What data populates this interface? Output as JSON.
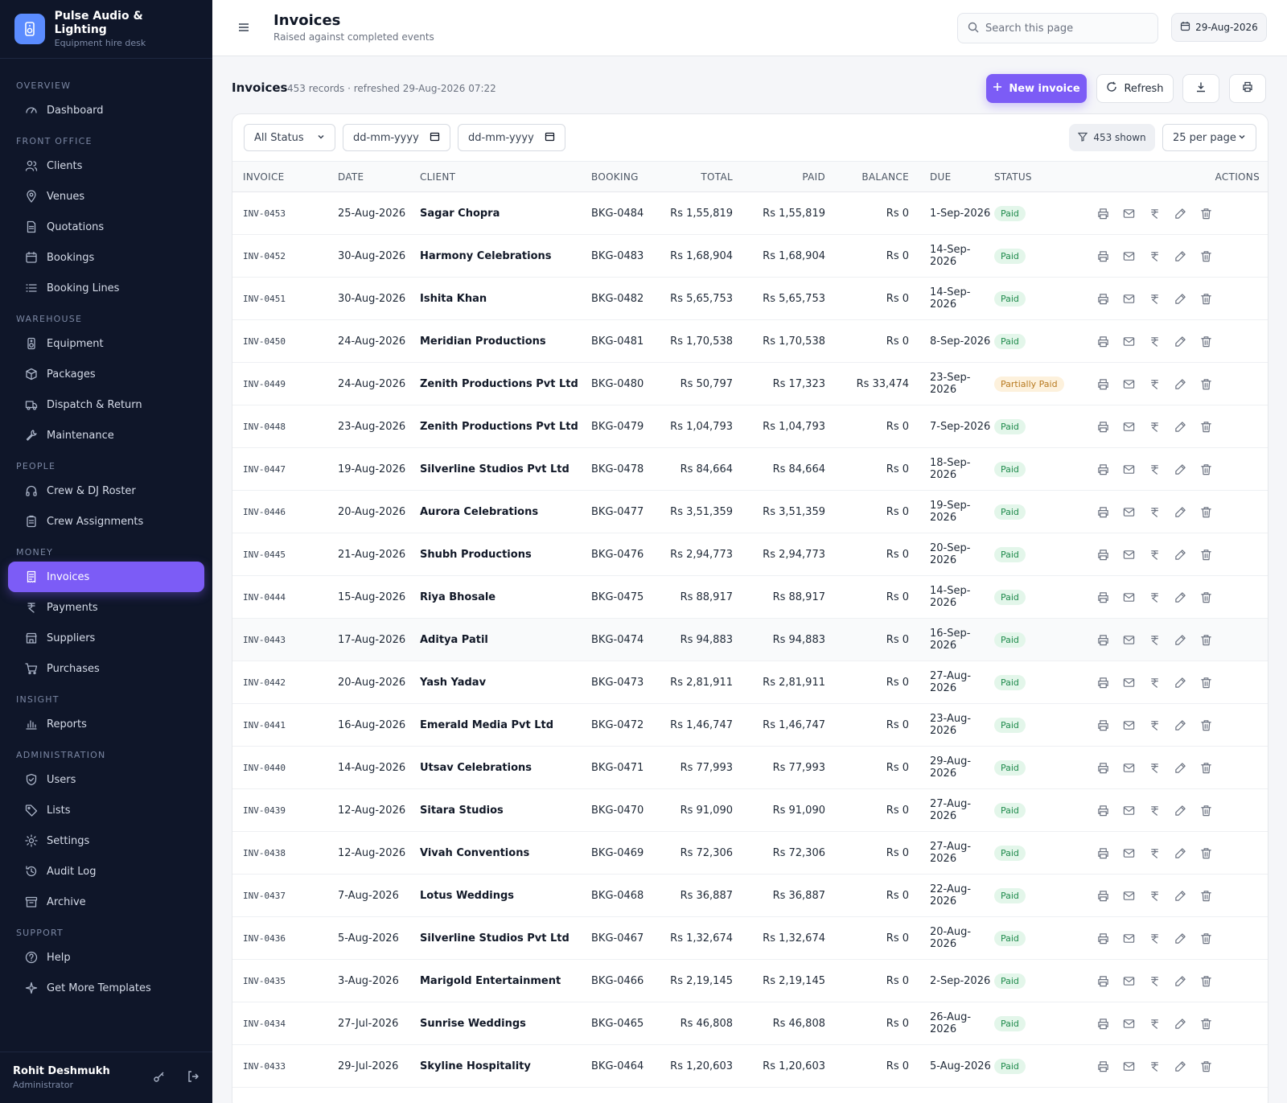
{
  "brand": {
    "name": "Pulse Audio & Lighting",
    "subtitle": "Equipment hire desk"
  },
  "nav": [
    {
      "section": "OVERVIEW",
      "items": [
        {
          "label": "Dashboard",
          "icon": "gauge-icon"
        }
      ]
    },
    {
      "section": "FRONT OFFICE",
      "items": [
        {
          "label": "Clients",
          "icon": "users-icon"
        },
        {
          "label": "Venues",
          "icon": "map-pin-icon"
        },
        {
          "label": "Quotations",
          "icon": "file-icon"
        },
        {
          "label": "Bookings",
          "icon": "calendar-icon"
        },
        {
          "label": "Booking Lines",
          "icon": "list-icon"
        }
      ]
    },
    {
      "section": "WAREHOUSE",
      "items": [
        {
          "label": "Equipment",
          "icon": "speaker-icon"
        },
        {
          "label": "Packages",
          "icon": "box-icon"
        },
        {
          "label": "Dispatch & Return",
          "icon": "truck-icon"
        },
        {
          "label": "Maintenance",
          "icon": "wrench-icon"
        }
      ]
    },
    {
      "section": "PEOPLE",
      "items": [
        {
          "label": "Crew & DJ Roster",
          "icon": "headphones-icon"
        },
        {
          "label": "Crew Assignments",
          "icon": "clipboard-icon"
        }
      ]
    },
    {
      "section": "MONEY",
      "items": [
        {
          "label": "Invoices",
          "icon": "invoice-icon",
          "active": true
        },
        {
          "label": "Payments",
          "icon": "rupee-icon"
        },
        {
          "label": "Suppliers",
          "icon": "store-icon"
        },
        {
          "label": "Purchases",
          "icon": "cart-icon"
        }
      ]
    },
    {
      "section": "INSIGHT",
      "items": [
        {
          "label": "Reports",
          "icon": "bar-chart-icon"
        }
      ]
    },
    {
      "section": "ADMINISTRATION",
      "items": [
        {
          "label": "Users",
          "icon": "shield-icon"
        },
        {
          "label": "Lists",
          "icon": "tag-icon"
        },
        {
          "label": "Settings",
          "icon": "gear-icon"
        },
        {
          "label": "Audit Log",
          "icon": "history-icon"
        },
        {
          "label": "Archive",
          "icon": "archive-icon"
        }
      ]
    },
    {
      "section": "SUPPORT",
      "items": [
        {
          "label": "Help",
          "icon": "help-icon"
        },
        {
          "label": "Get More Templates",
          "icon": "sparkle-icon"
        }
      ]
    }
  ],
  "user": {
    "name": "Rohit Deshmukh",
    "role": "Administrator"
  },
  "topbar": {
    "title": "Invoices",
    "subtitle": "Raised against completed events",
    "search_placeholder": "Search this page",
    "date": "29-Aug-2026"
  },
  "list": {
    "title": "Invoices",
    "meta": "453 records · refreshed 29-Aug-2026 07:22",
    "new_label": "New invoice",
    "refresh_label": "Refresh"
  },
  "filters": {
    "status": "All Status",
    "date_placeholder": "dd-mm-yyyy",
    "shown": "453 shown",
    "per_page": "25 per page"
  },
  "columns": [
    "INVOICE",
    "DATE",
    "CLIENT",
    "BOOKING",
    "TOTAL",
    "PAID",
    "BALANCE",
    "DUE",
    "STATUS",
    "ACTIONS"
  ],
  "rows": [
    [
      "INV-0453",
      "25-Aug-2026",
      "Sagar Chopra",
      "BKG-0484",
      "Rs 1,55,819",
      "Rs 1,55,819",
      "Rs 0",
      "1-Sep-2026",
      "Paid"
    ],
    [
      "INV-0452",
      "30-Aug-2026",
      "Harmony Celebrations",
      "BKG-0483",
      "Rs 1,68,904",
      "Rs 1,68,904",
      "Rs 0",
      "14-Sep-2026",
      "Paid"
    ],
    [
      "INV-0451",
      "30-Aug-2026",
      "Ishita Khan",
      "BKG-0482",
      "Rs 5,65,753",
      "Rs 5,65,753",
      "Rs 0",
      "14-Sep-2026",
      "Paid"
    ],
    [
      "INV-0450",
      "24-Aug-2026",
      "Meridian Productions",
      "BKG-0481",
      "Rs 1,70,538",
      "Rs 1,70,538",
      "Rs 0",
      "8-Sep-2026",
      "Paid"
    ],
    [
      "INV-0449",
      "24-Aug-2026",
      "Zenith Productions Pvt Ltd",
      "BKG-0480",
      "Rs 50,797",
      "Rs 17,323",
      "Rs 33,474",
      "23-Sep-2026",
      "Partially Paid"
    ],
    [
      "INV-0448",
      "23-Aug-2026",
      "Zenith Productions Pvt Ltd",
      "BKG-0479",
      "Rs 1,04,793",
      "Rs 1,04,793",
      "Rs 0",
      "7-Sep-2026",
      "Paid"
    ],
    [
      "INV-0447",
      "19-Aug-2026",
      "Silverline Studios Pvt Ltd",
      "BKG-0478",
      "Rs 84,664",
      "Rs 84,664",
      "Rs 0",
      "18-Sep-2026",
      "Paid"
    ],
    [
      "INV-0446",
      "20-Aug-2026",
      "Aurora Celebrations",
      "BKG-0477",
      "Rs 3,51,359",
      "Rs 3,51,359",
      "Rs 0",
      "19-Sep-2026",
      "Paid"
    ],
    [
      "INV-0445",
      "21-Aug-2026",
      "Shubh Productions",
      "BKG-0476",
      "Rs 2,94,773",
      "Rs 2,94,773",
      "Rs 0",
      "20-Sep-2026",
      "Paid"
    ],
    [
      "INV-0444",
      "15-Aug-2026",
      "Riya Bhosale",
      "BKG-0475",
      "Rs 88,917",
      "Rs 88,917",
      "Rs 0",
      "14-Sep-2026",
      "Paid"
    ],
    [
      "INV-0443",
      "17-Aug-2026",
      "Aditya Patil",
      "BKG-0474",
      "Rs 94,883",
      "Rs 94,883",
      "Rs 0",
      "16-Sep-2026",
      "Paid"
    ],
    [
      "INV-0442",
      "20-Aug-2026",
      "Yash Yadav",
      "BKG-0473",
      "Rs 2,81,911",
      "Rs 2,81,911",
      "Rs 0",
      "27-Aug-2026",
      "Paid"
    ],
    [
      "INV-0441",
      "16-Aug-2026",
      "Emerald Media Pvt Ltd",
      "BKG-0472",
      "Rs 1,46,747",
      "Rs 1,46,747",
      "Rs 0",
      "23-Aug-2026",
      "Paid"
    ],
    [
      "INV-0440",
      "14-Aug-2026",
      "Utsav Celebrations",
      "BKG-0471",
      "Rs 77,993",
      "Rs 77,993",
      "Rs 0",
      "29-Aug-2026",
      "Paid"
    ],
    [
      "INV-0439",
      "12-Aug-2026",
      "Sitara Studios",
      "BKG-0470",
      "Rs 91,090",
      "Rs 91,090",
      "Rs 0",
      "27-Aug-2026",
      "Paid"
    ],
    [
      "INV-0438",
      "12-Aug-2026",
      "Vivah Conventions",
      "BKG-0469",
      "Rs 72,306",
      "Rs 72,306",
      "Rs 0",
      "27-Aug-2026",
      "Paid"
    ],
    [
      "INV-0437",
      "7-Aug-2026",
      "Lotus Weddings",
      "BKG-0468",
      "Rs 36,887",
      "Rs 36,887",
      "Rs 0",
      "22-Aug-2026",
      "Paid"
    ],
    [
      "INV-0436",
      "5-Aug-2026",
      "Silverline Studios Pvt Ltd",
      "BKG-0467",
      "Rs 1,32,674",
      "Rs 1,32,674",
      "Rs 0",
      "20-Aug-2026",
      "Paid"
    ],
    [
      "INV-0435",
      "3-Aug-2026",
      "Marigold Entertainment",
      "BKG-0466",
      "Rs 2,19,145",
      "Rs 2,19,145",
      "Rs 0",
      "2-Sep-2026",
      "Paid"
    ],
    [
      "INV-0434",
      "27-Jul-2026",
      "Sunrise Weddings",
      "BKG-0465",
      "Rs 46,808",
      "Rs 46,808",
      "Rs 0",
      "26-Aug-2026",
      "Paid"
    ],
    [
      "INV-0433",
      "29-Jul-2026",
      "Skyline Hospitality",
      "BKG-0464",
      "Rs 1,20,603",
      "Rs 1,20,603",
      "Rs 0",
      "5-Aug-2026",
      "Paid"
    ]
  ],
  "row_actions": [
    "print-icon",
    "mail-icon",
    "rupee-icon",
    "edit-icon",
    "trash-icon"
  ],
  "colors": {
    "accent": "#7c5cf6",
    "sidebar_bg": "#0f1629",
    "paid": "#1f8a4c",
    "partial": "#b7791f"
  }
}
